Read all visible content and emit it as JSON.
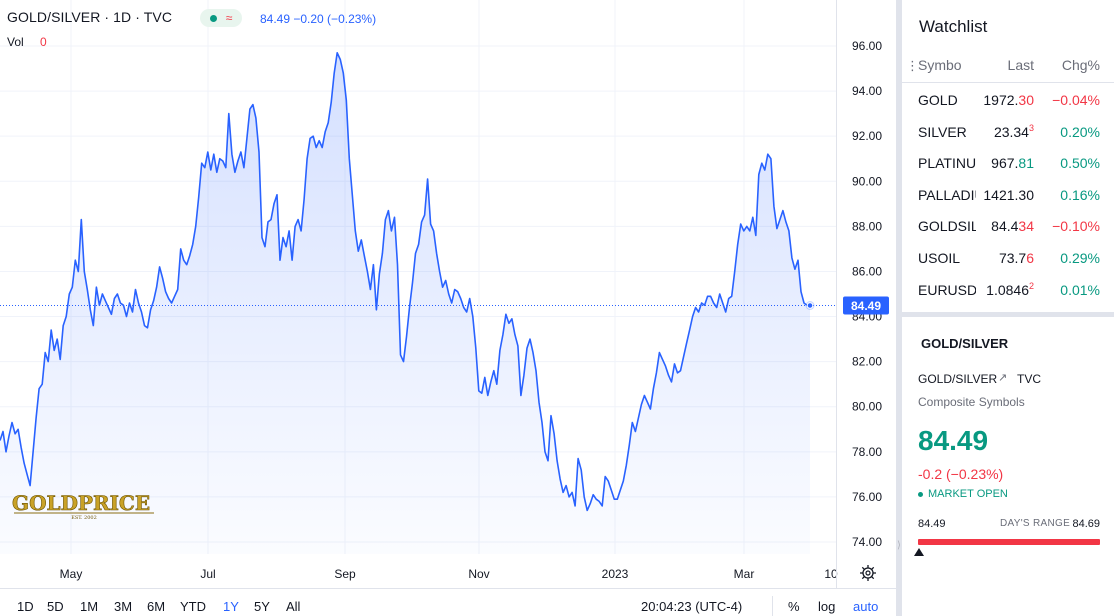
{
  "legend": {
    "title": "GOLD/SILVER · 1D · TVC",
    "price_text": "84.49 −0.20 (−0.23%)",
    "vol_label": "Vol",
    "vol_value": "0",
    "pill_icon": "wave-icon"
  },
  "chart_data": {
    "type": "area",
    "title": "GOLD/SILVER · 1D · TVC",
    "xlabel": "",
    "ylabel": "",
    "ylim": [
      73.4,
      97.2
    ],
    "x_ticks": [
      "May",
      "Jul",
      "Sep",
      "Nov",
      "2023",
      "Mar",
      "10"
    ],
    "y_ticks": [
      "74.00",
      "76.00",
      "78.00",
      "80.00",
      "82.00",
      "84.00",
      "86.00",
      "88.00",
      "90.00",
      "92.00",
      "94.00",
      "96.00"
    ],
    "last_price_label": "84.49",
    "last_value": 84.49,
    "grid": true,
    "line_color": "#2962ff",
    "fill_color": "#2962ff",
    "series": [
      {
        "values": [
          78.5,
          78.9,
          78.0,
          78.7,
          79.3,
          78.8,
          79.0,
          78.2,
          77.5,
          77.0,
          76.5,
          78.0,
          79.5,
          80.8,
          81.0,
          82.4,
          82.0,
          83.4,
          82.5,
          83.0,
          82.1,
          83.6,
          84.0,
          85.0,
          85.3,
          86.5,
          86.0,
          88.3,
          86.0,
          85.2,
          84.3,
          83.6,
          85.3,
          84.5,
          85.0,
          84.7,
          84.4,
          84.1,
          84.8,
          85.0,
          84.6,
          84.5,
          84.0,
          84.6,
          84.2,
          85.2,
          84.6,
          84.2,
          83.6,
          83.5,
          84.3,
          84.7,
          85.3,
          86.2,
          85.7,
          85.1,
          84.8,
          84.6,
          84.9,
          85.2,
          87.0,
          86.5,
          86.3,
          86.7,
          87.2,
          88.0,
          89.3,
          90.8,
          90.6,
          91.3,
          90.5,
          91.2,
          90.4,
          91.0,
          90.9,
          90.6,
          93.0,
          91.2,
          90.4,
          90.9,
          91.3,
          90.6,
          91.9,
          93.2,
          93.4,
          92.8,
          91.3,
          87.5,
          87.1,
          88.2,
          88.3,
          89.0,
          89.4,
          86.5,
          87.5,
          87.1,
          87.8,
          86.5,
          88.0,
          88.3,
          87.8,
          89.2,
          91.0,
          91.9,
          92.0,
          91.5,
          91.8,
          91.5,
          92.2,
          92.6,
          93.5,
          94.8,
          95.7,
          95.4,
          94.8,
          93.6,
          91.0,
          89.4,
          87.8,
          86.9,
          87.4,
          86.7,
          86.0,
          85.2,
          86.3,
          84.3,
          85.9,
          86.8,
          88.3,
          88.7,
          87.8,
          88.4,
          86.3,
          82.3,
          82.0,
          83.1,
          84.4,
          85.5,
          86.8,
          87.2,
          88.2,
          88.5,
          90.1,
          88.1,
          87.8,
          86.8,
          86.0,
          85.3,
          85.6,
          85.0,
          84.6,
          85.2,
          85.1,
          84.8,
          84.4,
          84.2,
          84.8,
          84.0,
          82.6,
          80.7,
          80.6,
          81.3,
          80.5,
          81.1,
          81.6,
          81.0,
          82.5,
          83.2,
          84.1,
          83.7,
          83.9,
          83.2,
          82.7,
          80.5,
          81.4,
          82.6,
          83.0,
          82.4,
          81.6,
          80.2,
          79.3,
          78.0,
          77.6,
          79.6,
          78.8,
          77.6,
          76.8,
          76.2,
          76.5,
          76.0,
          76.2,
          75.6,
          77.7,
          77.2,
          76.0,
          75.4,
          75.7,
          76.1,
          75.9,
          75.8,
          75.6,
          76.9,
          76.7,
          76.3,
          75.9,
          75.9,
          76.3,
          76.7,
          77.4,
          78.3,
          79.3,
          78.9,
          79.5,
          80.1,
          80.5,
          80.2,
          79.9,
          80.8,
          81.5,
          82.4,
          82.1,
          81.8,
          81.4,
          81.1,
          81.9,
          81.5,
          81.6,
          82.2,
          82.8,
          83.4,
          84.0,
          84.4,
          84.2,
          84.6,
          84.5,
          84.9,
          84.9,
          84.6,
          84.4,
          85.0,
          84.6,
          84.2,
          84.8,
          84.9,
          86.0,
          87.2,
          88.1,
          87.8,
          88.0,
          87.8,
          88.4,
          87.6,
          90.3,
          90.8,
          90.5,
          91.2,
          91.0,
          88.9,
          87.9,
          88.3,
          88.7,
          88.2,
          87.8,
          86.6,
          86.1,
          86.5,
          85.1,
          84.6,
          84.5,
          84.49
        ]
      }
    ]
  },
  "toolbar": {
    "ranges": [
      "1D",
      "5D",
      "1M",
      "3M",
      "6M",
      "YTD",
      "1Y",
      "5Y",
      "All"
    ],
    "active_range": "1Y",
    "time": "20:04:23 (UTC-4)",
    "percent": "%",
    "log": "log",
    "auto": "auto"
  },
  "watchlist": {
    "title": "Watchlist",
    "headers": {
      "symbol": "Symbo",
      "last": "Last",
      "chg": "Chg%"
    },
    "rows": [
      {
        "symbol": "GOLD",
        "last_main": "1972.",
        "last_hl": "30",
        "last_sup": "",
        "last_dir": "down",
        "chg": "−0.04%",
        "chg_dir": "down"
      },
      {
        "symbol": "SILVER",
        "last_main": "23.34",
        "last_hl": "",
        "last_sup": "3",
        "last_dir": "down",
        "chg": "0.20%",
        "chg_dir": "up"
      },
      {
        "symbol": "PLATINUM",
        "last_main": "967.",
        "last_hl": "81",
        "last_sup": "",
        "last_dir": "up",
        "chg": "0.50%",
        "chg_dir": "up"
      },
      {
        "symbol": "PALLADIUM",
        "last_main": "1421.30",
        "last_hl": "",
        "last_sup": "",
        "last_dir": "none",
        "chg": "0.16%",
        "chg_dir": "up"
      },
      {
        "symbol": "GOLDSILVER",
        "last_main": "84.4",
        "last_hl": "34",
        "last_sup": "",
        "last_dir": "down",
        "chg": "−0.10%",
        "chg_dir": "down"
      },
      {
        "symbol": "USOIL",
        "last_main": "73.7",
        "last_hl": "6",
        "last_sup": "",
        "last_dir": "down",
        "chg": "0.29%",
        "chg_dir": "up"
      },
      {
        "symbol": "EURUSD",
        "last_main": "1.0846",
        "last_hl": "",
        "last_sup": "2",
        "last_dir": "down",
        "chg": "0.01%",
        "chg_dir": "up"
      }
    ]
  },
  "details": {
    "name": "GOLD/SILVER",
    "symbol": "GOLD/SILVER",
    "exchange": "TVC",
    "description": "Composite Symbols",
    "price": "84.49",
    "change": "-0.2 (−0.23%)",
    "status": "MARKET OPEN",
    "range_low": "84.49",
    "range_label": "DAY'S RANGE",
    "range_high": "84.69"
  },
  "watermark": {
    "text": "GOLDPRICE",
    "sub": "EST. 2002"
  },
  "colors": {
    "up": "#089981",
    "down": "#f23645",
    "accent": "#2962ff"
  }
}
